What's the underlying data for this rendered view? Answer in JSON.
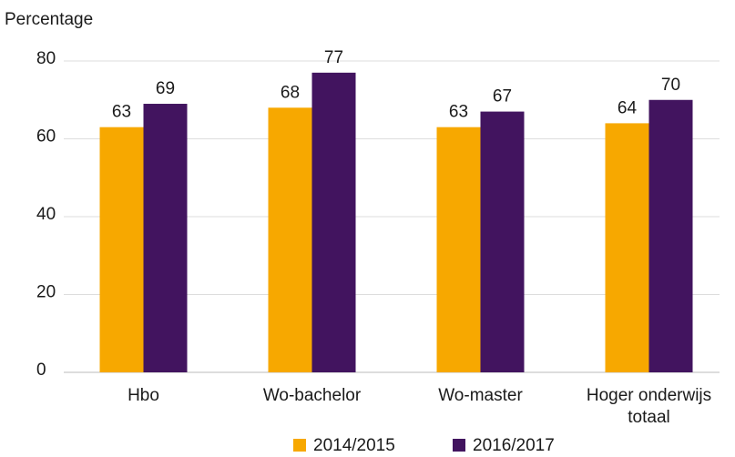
{
  "chart_data": {
    "type": "bar",
    "y_axis_label": "Percentage",
    "categories": [
      "Hbo",
      "Wo-bachelor",
      "Wo-master",
      "Hoger onderwijs totaal"
    ],
    "series": [
      {
        "name": "2014/2015",
        "color": "#f7a800",
        "values": [
          63,
          68,
          63,
          64
        ]
      },
      {
        "name": "2016/2017",
        "color": "#42145f",
        "values": [
          69,
          77,
          67,
          70
        ]
      }
    ],
    "ylim": [
      0,
      80
    ],
    "yticks": [
      0,
      20,
      40,
      60,
      80
    ],
    "grid": true,
    "legend": "bottom"
  }
}
